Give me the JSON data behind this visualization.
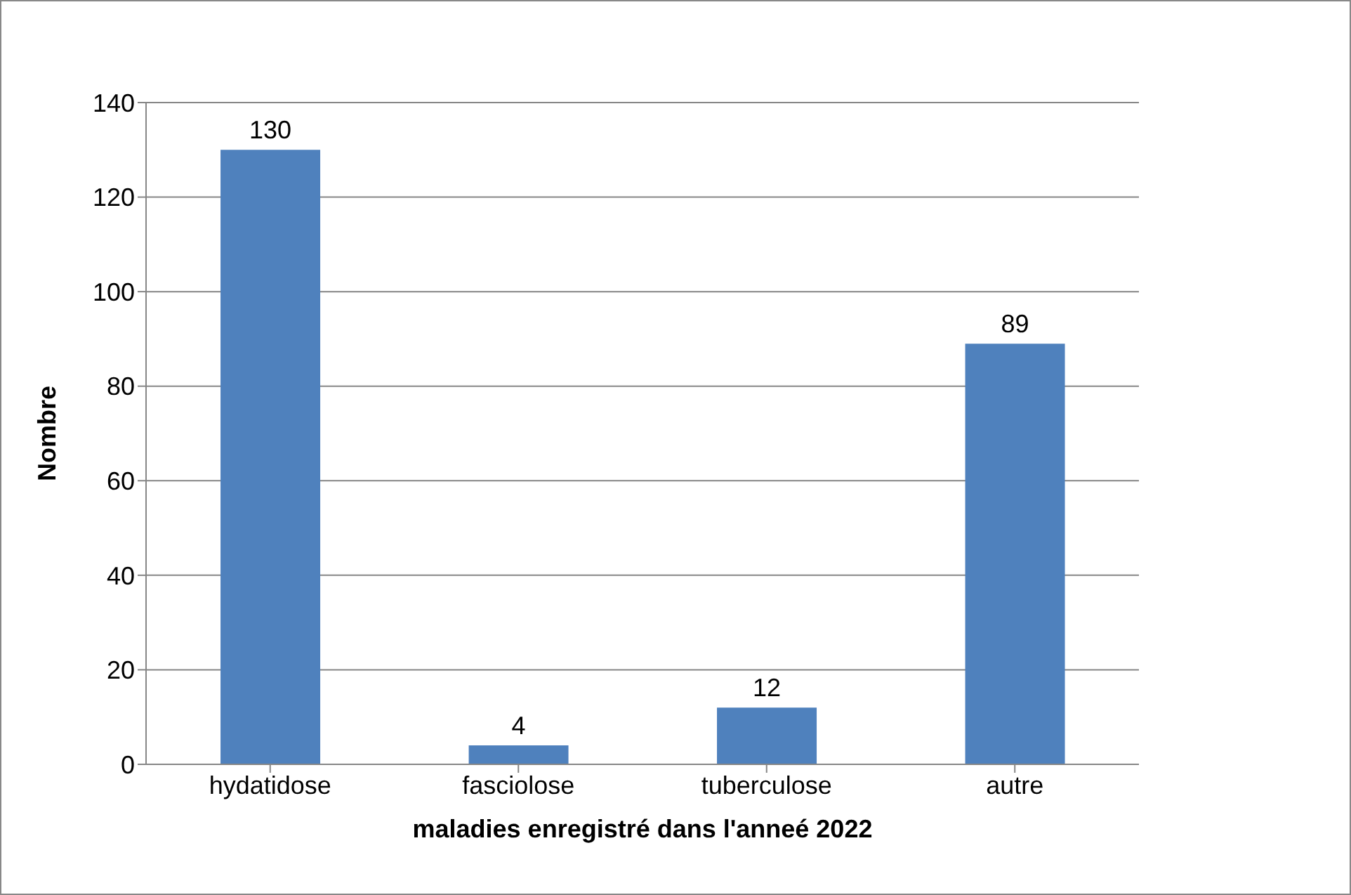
{
  "chart_data": {
    "type": "bar",
    "xlabel": "maladies enregistré dans l'anneé 2022",
    "ylabel": "Nombre",
    "categories": [
      "hydatidose",
      "fasciolose",
      "tuberculose",
      "autre"
    ],
    "values": [
      130,
      4,
      12,
      89
    ],
    "color": "#4f81bd",
    "ylim": [
      0,
      140
    ],
    "yticks": [
      0,
      20,
      40,
      60,
      80,
      100,
      120,
      140
    ],
    "grid": "y",
    "data_labels": true
  }
}
